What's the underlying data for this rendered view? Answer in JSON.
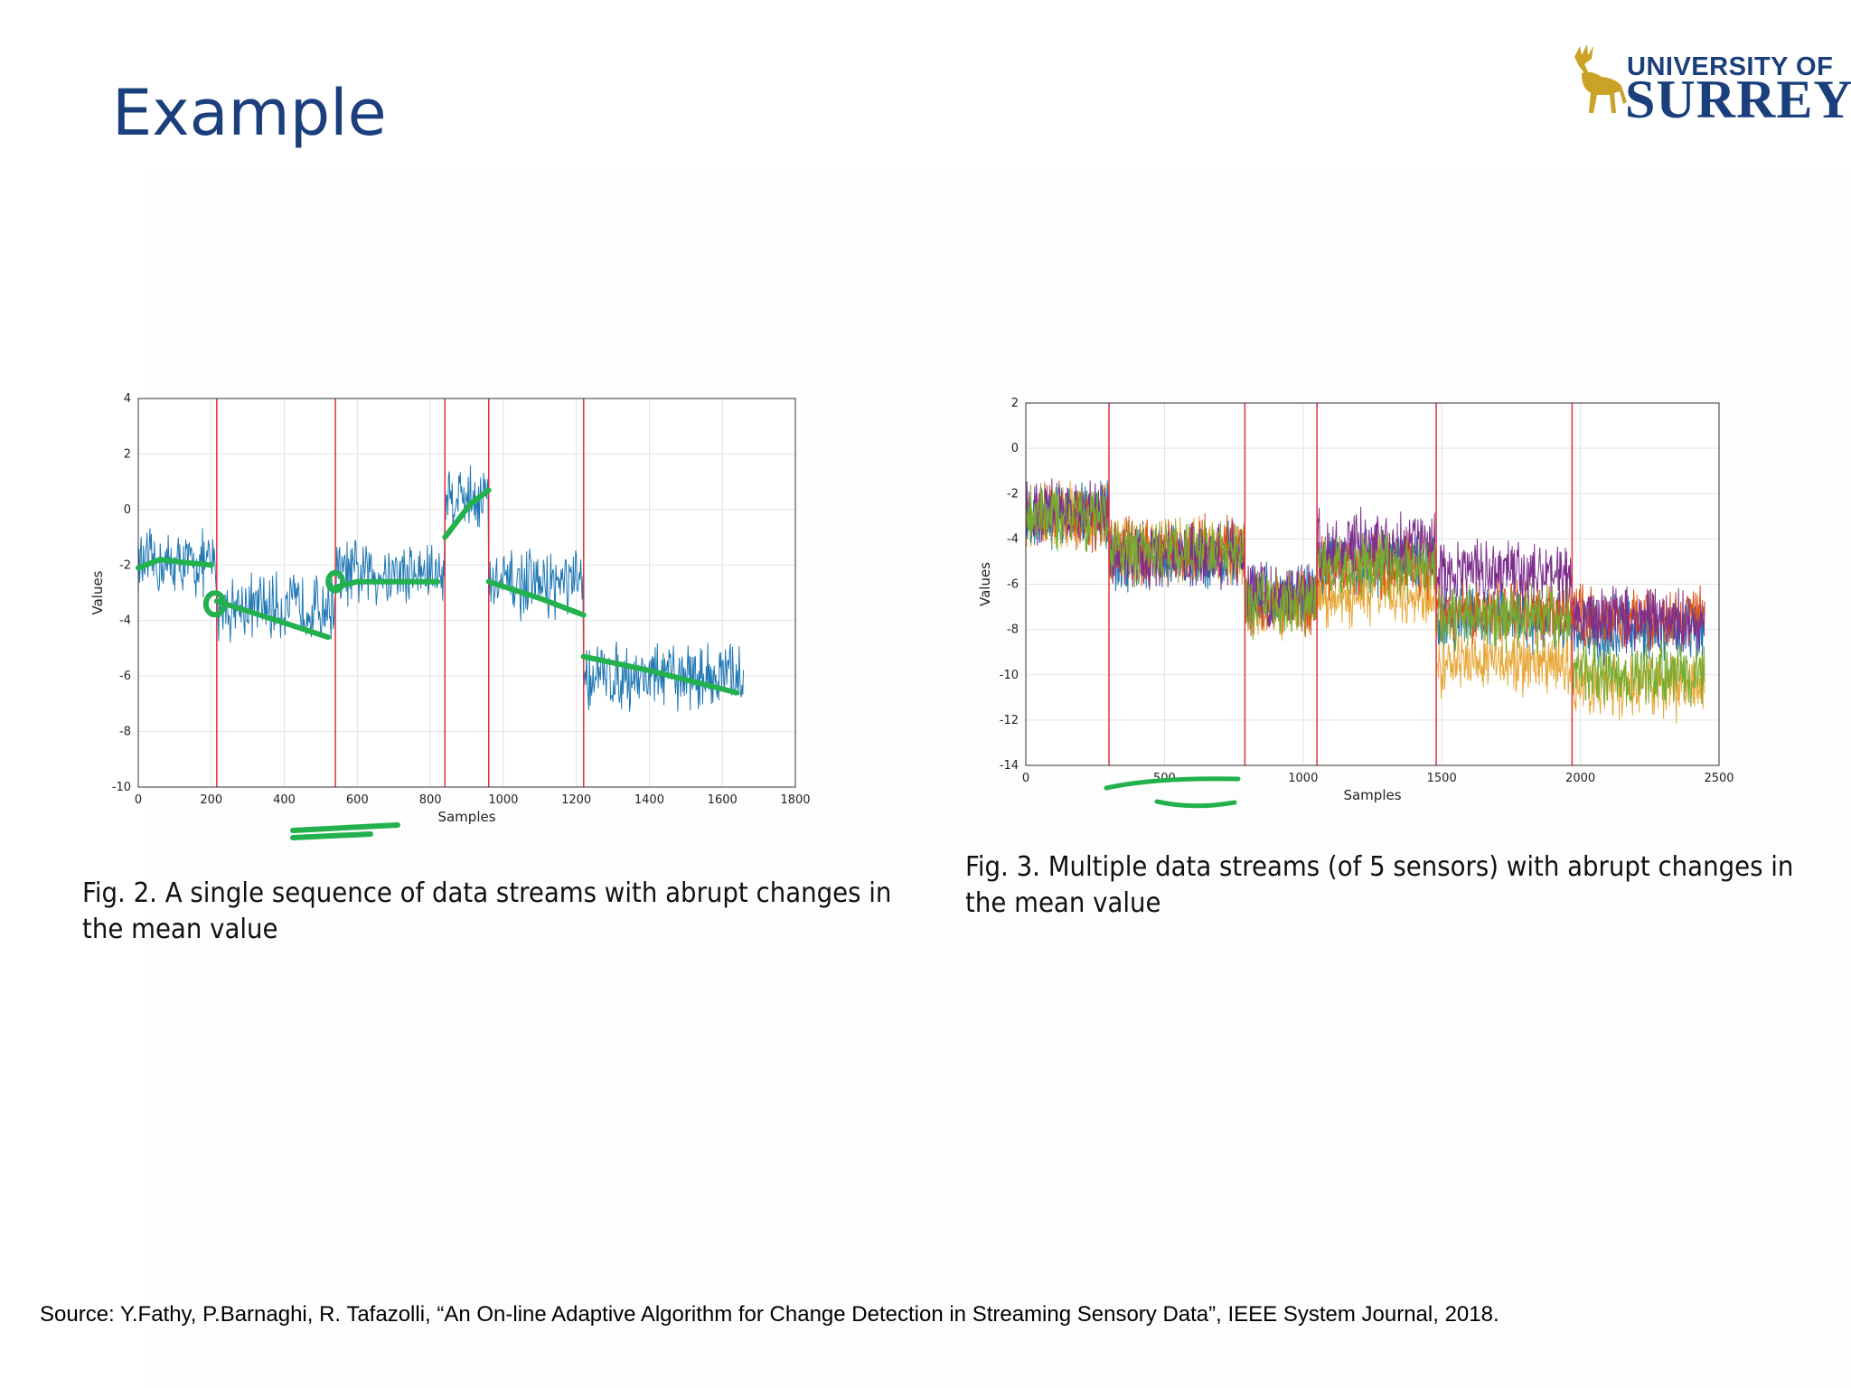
{
  "slide": {
    "title": "Example",
    "logo_line1": "UNIVERSITY OF",
    "logo_line2": "SURREY",
    "source": "Source: Y.Fathy, P.Barnaghi, R. Tafazolli, “An On-line Adaptive Algorithm for Change Detection in Streaming Sensory Data”, IEEE System Journal, 2018.",
    "colors": {
      "title": "#1b3f7c",
      "logo_gold": "#c9a227",
      "annotation": "#22b14c",
      "change_point": "#e0303a"
    }
  },
  "chart_data": [
    {
      "type": "line",
      "caption": "Fig. 2. A single sequence of data streams with abrupt changes in the mean value",
      "xlabel": "Samples",
      "ylabel": "Values",
      "xlim": [
        0,
        1800
      ],
      "ylim": [
        -10,
        4
      ],
      "xticks": [
        0,
        200,
        400,
        600,
        800,
        1000,
        1200,
        1400,
        1600,
        1800
      ],
      "yticks": [
        -10,
        -8,
        -6,
        -4,
        -2,
        0,
        2,
        4
      ],
      "grid": true,
      "n_samples": 1660,
      "change_points": [
        215,
        540,
        840,
        960,
        1220
      ],
      "segment_means": [
        -2,
        -3.5,
        -2.3,
        0.5,
        -2.7,
        -6
      ],
      "noise_amplitude": 1.0,
      "series_color": "#1f77b4"
    },
    {
      "type": "line",
      "caption": "Fig. 3. Multiple data streams (of 5 sensors) with abrupt changes in the mean value",
      "xlabel": "Samples",
      "ylabel": "Values",
      "xlim": [
        0,
        2500
      ],
      "ylim": [
        -14,
        2
      ],
      "xticks": [
        0,
        500,
        1000,
        1500,
        2000,
        2500
      ],
      "yticks": [
        -14,
        -12,
        -10,
        -8,
        -6,
        -4,
        -2,
        0,
        2
      ],
      "grid": true,
      "n_samples": 2450,
      "change_points": [
        300,
        790,
        1050,
        1480,
        1970
      ],
      "series": [
        {
          "color": "#e8a838",
          "means": [
            -3,
            -4.5,
            -7,
            -6.5,
            -9.5,
            -10.5
          ]
        },
        {
          "color": "#1f77b4",
          "means": [
            -3,
            -4.8,
            -6.5,
            -5,
            -7.5,
            -8
          ]
        },
        {
          "color": "#d95319",
          "means": [
            -3,
            -4.5,
            -6.8,
            -5.2,
            -7.2,
            -7.5
          ]
        },
        {
          "color": "#7e2f8e",
          "means": [
            -2.8,
            -4.8,
            -6.5,
            -4.2,
            -5.5,
            -7.5
          ]
        },
        {
          "color": "#77ac30",
          "means": [
            -3,
            -4.5,
            -6.8,
            -5.2,
            -7.5,
            -10
          ]
        }
      ],
      "noise_amplitude": 1.2
    }
  ]
}
